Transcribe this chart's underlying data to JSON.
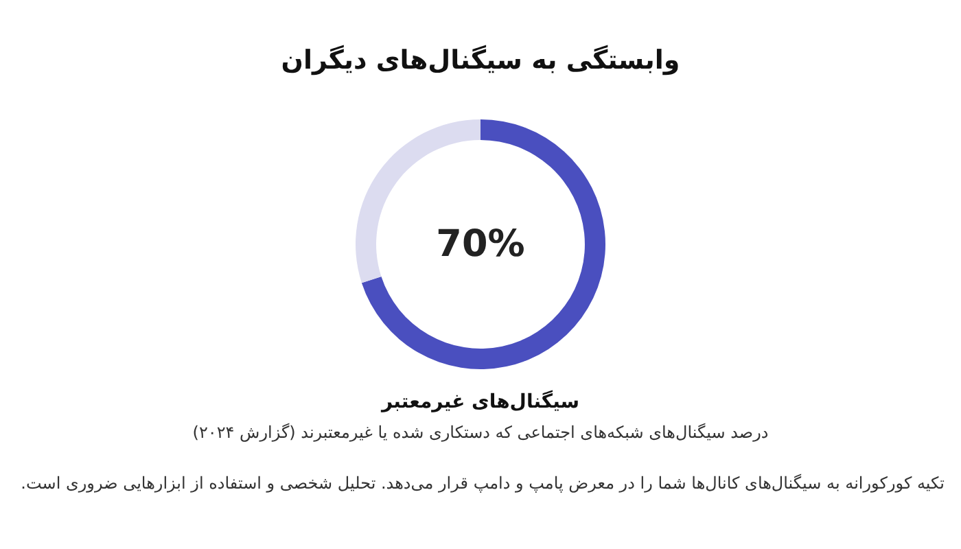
{
  "chart_data": {
    "type": "donut",
    "title": "وابستگی به سیگنال‌های دیگران",
    "categories": [
      "سیگنال‌های غیرمعتبر",
      null
    ],
    "values": [
      70,
      30
    ],
    "colors": [
      "#4a4fbf",
      "#dcdcf0"
    ],
    "annotations": [
      "70%",
      "درصد سیگنال‌های شبکه‌های اجتماعی که دستکاری شده یا غیرمعتبرند (گزارش ۲۰۲۴)",
      "تکیه کورکورانه به سیگنال‌های کانال‌ها شما را در معرض پامپ و دامپ قرار می‌دهد. تحلیل شخصی و استفاده از ابزارهایی ضروری است."
    ]
  }
}
